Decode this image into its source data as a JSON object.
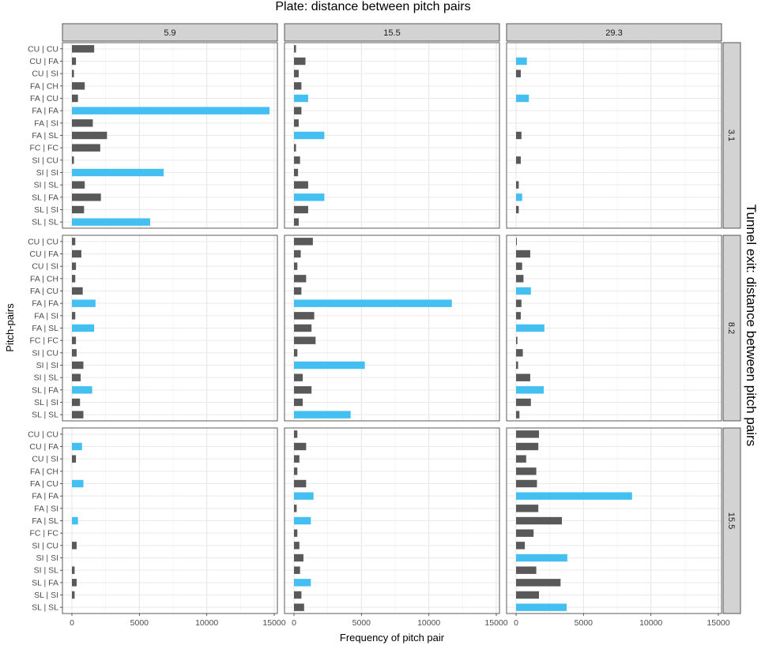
{
  "chart_data": {
    "type": "bar",
    "orientation": "horizontal",
    "facet_type": "grid",
    "title": "Plate: distance between pitch pairs",
    "xlabel": "Frequency of pitch pair",
    "ylabel": "Pitch-pairs",
    "right_strip_label": "Tunnel exit: distance between pitch pairs",
    "xlim": [
      0,
      15000
    ],
    "x_ticks": [
      0,
      5000,
      10000,
      15000
    ],
    "grid": true,
    "legend": "none",
    "colors": {
      "default": "#595959",
      "highlight": "#43bff1",
      "strip_bg": "#d3d3d3"
    },
    "categories": [
      "CU | CU",
      "CU | FA",
      "CU | SI",
      "FA | CH",
      "FA | CU",
      "FA | FA",
      "FA | SI",
      "FA | SL",
      "FC | FC",
      "SI | CU",
      "SI | SI",
      "SI | SL",
      "SL | FA",
      "SL | SI",
      "SL | SL"
    ],
    "column_facets": [
      "5.9",
      "15.5",
      "29.3"
    ],
    "row_facets": [
      "3.1",
      "8.2",
      "15.5"
    ],
    "panels": [
      {
        "col": "5.9",
        "row": "3.1",
        "values": [
          1650,
          300,
          150,
          950,
          450,
          14650,
          1550,
          2600,
          2100,
          150,
          6800,
          950,
          2150,
          900,
          5800
        ],
        "highlight": [
          false,
          false,
          false,
          false,
          false,
          true,
          false,
          false,
          false,
          false,
          true,
          false,
          false,
          false,
          true
        ]
      },
      {
        "col": "15.5",
        "row": "3.1",
        "values": [
          150,
          850,
          350,
          550,
          1050,
          550,
          350,
          2250,
          150,
          450,
          300,
          1050,
          2250,
          1050,
          350
        ],
        "highlight": [
          false,
          false,
          false,
          false,
          true,
          false,
          false,
          true,
          false,
          false,
          false,
          false,
          true,
          false,
          false
        ]
      },
      {
        "col": "29.3",
        "row": "3.1",
        "values": [
          0,
          800,
          350,
          0,
          950,
          0,
          0,
          400,
          0,
          350,
          0,
          200,
          450,
          200,
          0
        ],
        "highlight": [
          false,
          true,
          false,
          false,
          true,
          false,
          false,
          false,
          false,
          false,
          false,
          false,
          true,
          false,
          false
        ]
      },
      {
        "col": "5.9",
        "row": "8.2",
        "values": [
          250,
          700,
          300,
          250,
          800,
          1750,
          250,
          1650,
          300,
          350,
          850,
          650,
          1500,
          600,
          850
        ],
        "highlight": [
          false,
          false,
          false,
          false,
          false,
          true,
          false,
          true,
          false,
          false,
          false,
          false,
          true,
          false,
          false
        ]
      },
      {
        "col": "15.5",
        "row": "8.2",
        "values": [
          1400,
          500,
          250,
          900,
          550,
          11700,
          1500,
          1300,
          1600,
          250,
          5250,
          650,
          1300,
          650,
          4200
        ],
        "highlight": [
          false,
          false,
          false,
          false,
          false,
          true,
          false,
          false,
          false,
          false,
          true,
          false,
          false,
          false,
          true
        ]
      },
      {
        "col": "29.3",
        "row": "8.2",
        "values": [
          50,
          1050,
          450,
          550,
          1100,
          400,
          350,
          2100,
          100,
          500,
          150,
          1050,
          2050,
          1100,
          250
        ],
        "highlight": [
          false,
          false,
          false,
          false,
          true,
          false,
          false,
          true,
          false,
          false,
          false,
          false,
          true,
          false,
          false
        ]
      },
      {
        "col": "5.9",
        "row": "15.5",
        "values": [
          0,
          750,
          300,
          0,
          850,
          0,
          0,
          450,
          0,
          350,
          0,
          200,
          350,
          200,
          0
        ],
        "highlight": [
          false,
          true,
          false,
          false,
          true,
          false,
          false,
          true,
          false,
          false,
          false,
          false,
          false,
          false,
          false
        ]
      },
      {
        "col": "15.5",
        "row": "15.5",
        "values": [
          250,
          900,
          400,
          250,
          900,
          1450,
          200,
          1250,
          250,
          400,
          700,
          450,
          1250,
          550,
          750
        ],
        "highlight": [
          false,
          false,
          false,
          false,
          false,
          true,
          false,
          true,
          false,
          false,
          false,
          false,
          true,
          false,
          false
        ]
      },
      {
        "col": "29.3",
        "row": "15.5",
        "values": [
          1700,
          1650,
          750,
          1500,
          1550,
          8600,
          1650,
          3400,
          1300,
          650,
          3800,
          1500,
          3300,
          1700,
          3750
        ],
        "highlight": [
          false,
          false,
          false,
          false,
          false,
          true,
          false,
          false,
          false,
          false,
          true,
          false,
          false,
          false,
          true
        ]
      }
    ]
  }
}
